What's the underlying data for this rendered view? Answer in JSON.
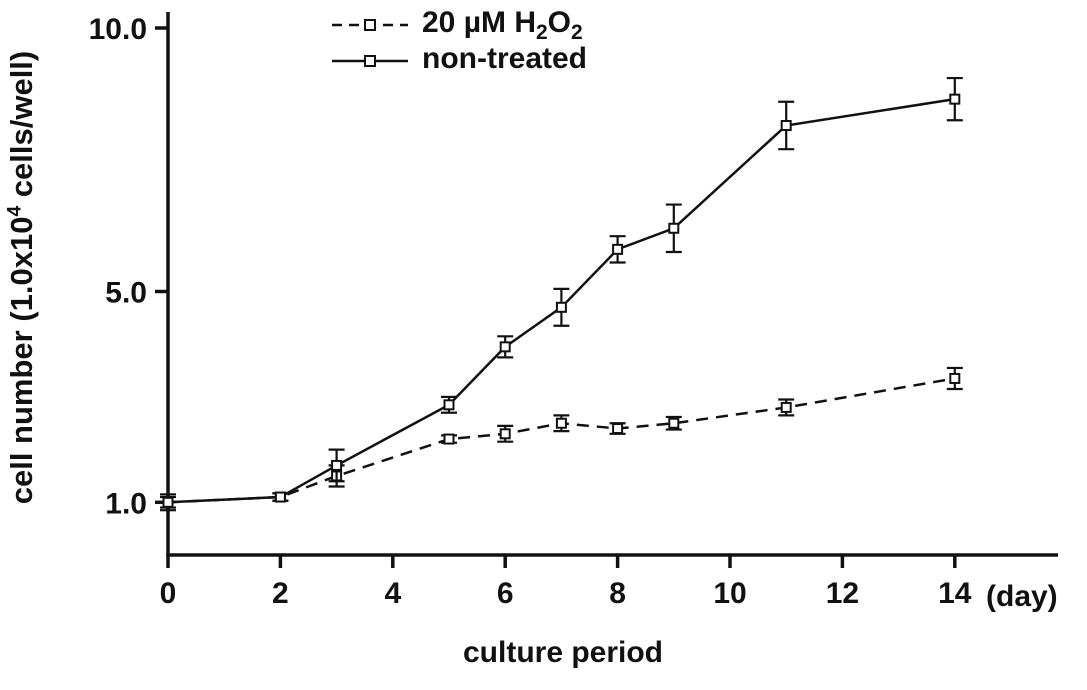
{
  "chart_data": {
    "type": "line",
    "title": "",
    "xlabel": "culture period",
    "xlabel_unit": "(day)",
    "ylabel": "cell number (1.0x10⁴ cells/well)",
    "ylabel_pre": "cell number (1.0x10",
    "ylabel_sup": "4",
    "ylabel_post": " cells/well)",
    "x": [
      0,
      2,
      3,
      5,
      6,
      7,
      8,
      9,
      11,
      14
    ],
    "x_ticks": [
      "0",
      "2",
      "4",
      "6",
      "8",
      "10",
      "12",
      "14"
    ],
    "x_tick_values": [
      0,
      2,
      4,
      6,
      8,
      10,
      12,
      14
    ],
    "y_tick_labels": [
      "1.0",
      "5.0",
      "10.0"
    ],
    "y_tick_values": [
      1.0,
      5.0,
      10.0
    ],
    "xlim": [
      0,
      15.8
    ],
    "ylim": [
      0,
      10.3
    ],
    "grid": false,
    "legend_position": "top-center",
    "marker": "open-square",
    "error_bars": true,
    "axis_color": "#111111",
    "background": "#ffffff",
    "series": [
      {
        "name": "20 µM H₂O₂",
        "line_style": "dashed",
        "values": [
          1.0,
          1.1,
          1.5,
          2.2,
          2.3,
          2.5,
          2.4,
          2.5,
          2.8,
          3.35
        ],
        "errors": [
          0.1,
          0.07,
          0.2,
          0.07,
          0.15,
          0.15,
          0.1,
          0.12,
          0.15,
          0.2
        ]
      },
      {
        "name": "non-treated",
        "line_style": "solid",
        "values": [
          1.0,
          1.1,
          1.7,
          2.85,
          3.95,
          4.7,
          5.8,
          6.2,
          8.15,
          8.65
        ],
        "errors": [
          0.15,
          0.07,
          0.3,
          0.15,
          0.2,
          0.35,
          0.25,
          0.45,
          0.45,
          0.4
        ]
      }
    ]
  },
  "legend": {
    "entries": [
      {
        "pre": "20 µM H",
        "sub_a": "2",
        "mid": "O",
        "sub_b": "2",
        "series": "20 µM H₂O₂"
      },
      {
        "pre": "non-treated",
        "sub_a": "",
        "mid": "",
        "sub_b": "",
        "series": "non-treated"
      }
    ]
  }
}
